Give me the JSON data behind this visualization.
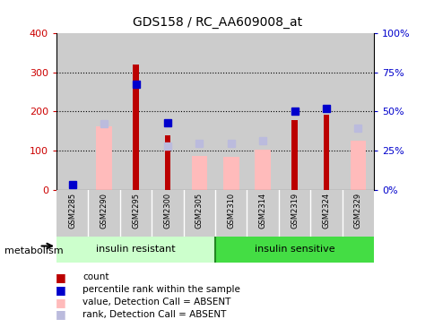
{
  "title": "GDS158 / RC_AA609008_at",
  "samples": [
    "GSM2285",
    "GSM2290",
    "GSM2295",
    "GSM2300",
    "GSM2305",
    "GSM2310",
    "GSM2314",
    "GSM2319",
    "GSM2324",
    "GSM2329"
  ],
  "count": [
    0,
    0,
    320,
    140,
    0,
    0,
    0,
    178,
    192,
    0
  ],
  "percentile_rank": [
    15,
    null,
    270,
    172,
    null,
    null,
    null,
    202,
    208,
    null
  ],
  "value_absent": [
    null,
    163,
    null,
    null,
    88,
    85,
    104,
    null,
    null,
    125
  ],
  "rank_absent": [
    null,
    168,
    null,
    113,
    118,
    120,
    126,
    null,
    null,
    157
  ],
  "left_ylim": [
    0,
    400
  ],
  "right_ylim": [
    0,
    100
  ],
  "left_yticks": [
    0,
    100,
    200,
    300,
    400
  ],
  "right_yticks": [
    0,
    25,
    50,
    75,
    100
  ],
  "right_yticklabels": [
    "0%",
    "25%",
    "50%",
    "75%",
    "100%"
  ],
  "group1_label": "insulin resistant",
  "group2_label": "insulin sensitive",
  "group1_indices": [
    0,
    1,
    2,
    3,
    4
  ],
  "group2_indices": [
    5,
    6,
    7,
    8,
    9
  ],
  "metabolism_label": "metabolism",
  "legend_items": [
    "count",
    "percentile rank within the sample",
    "value, Detection Call = ABSENT",
    "rank, Detection Call = ABSENT"
  ],
  "colors": {
    "count": "#bb0000",
    "percentile_rank": "#0000cc",
    "value_absent": "#ffbbbb",
    "rank_absent": "#bbbbdd",
    "group1_bg": "#ccffcc",
    "group2_bg": "#44dd44",
    "sample_bg": "#cccccc",
    "left_axis": "#cc0000",
    "right_axis": "#0000cc"
  },
  "bar_width": 0.18,
  "wide_bar_width": 0.5,
  "marker_size": 6
}
